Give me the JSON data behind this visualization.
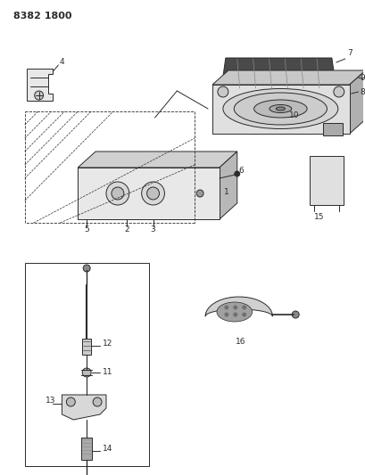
{
  "title": "8382 1800",
  "bg_color": "#ffffff",
  "line_color": "#2a2a2a",
  "title_fontsize": 8,
  "label_fontsize": 6.5
}
